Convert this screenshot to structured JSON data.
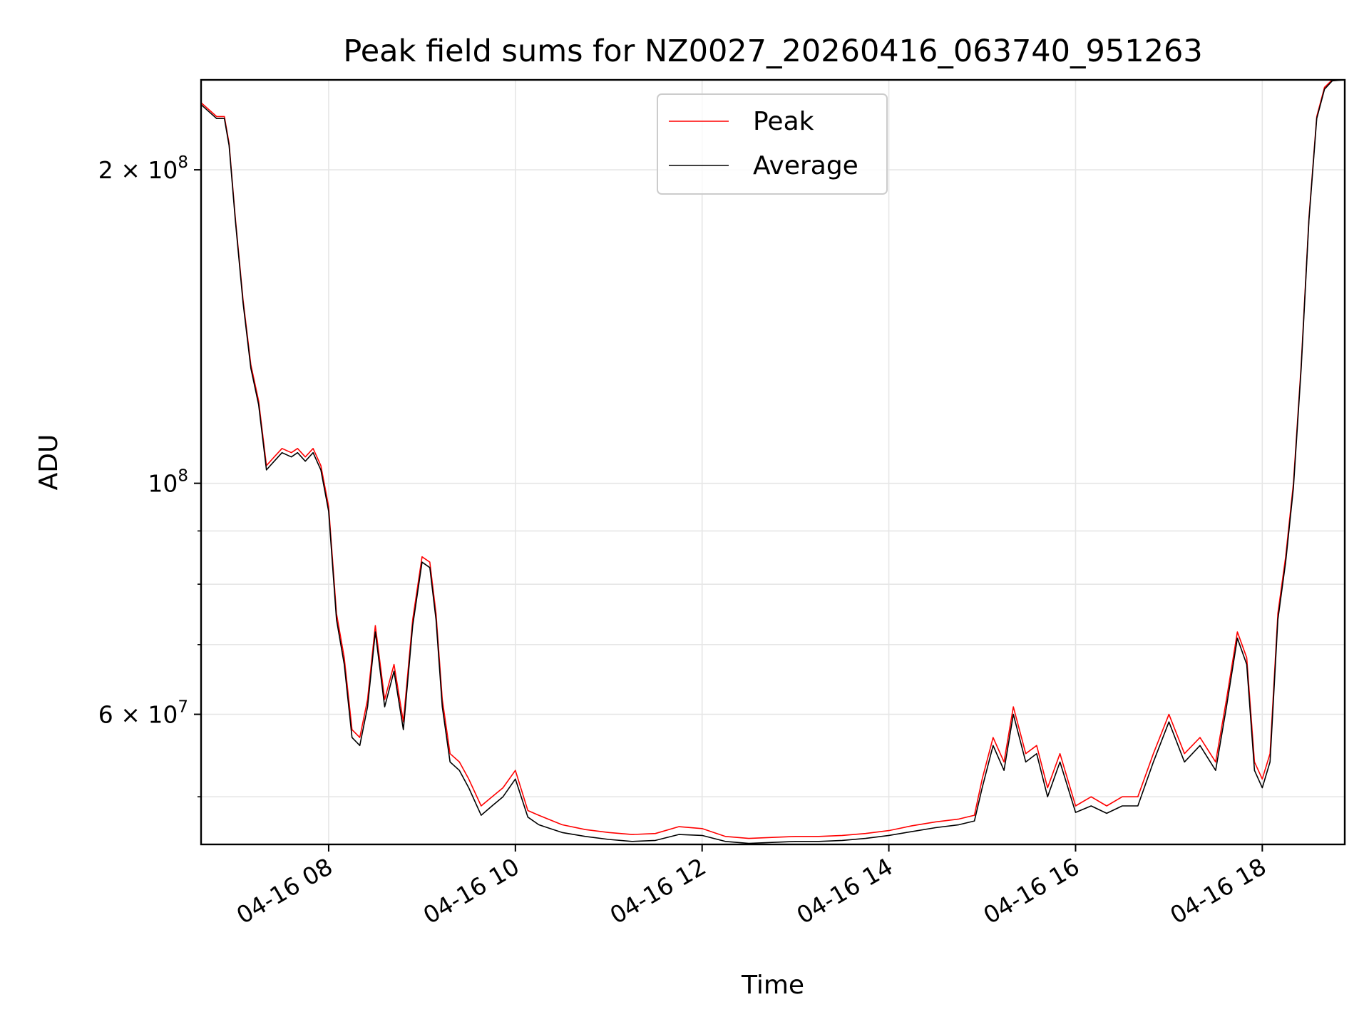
{
  "chart_data": {
    "type": "line",
    "title": "Peak field sums for NZ0027_20260416_063740_951263",
    "xlabel": "Time",
    "ylabel": "ADU",
    "y_scale": "log",
    "ylim": [
      45000000,
      244000000
    ],
    "xlim": [
      "2026-04-16 06:38",
      "2026-04-16 18:53"
    ],
    "grid": true,
    "legend_placement": "upper center",
    "x_ticks": [
      {
        "value": "2026-04-16 08:00",
        "label": "04-16 08"
      },
      {
        "value": "2026-04-16 10:00",
        "label": "04-16 10"
      },
      {
        "value": "2026-04-16 12:00",
        "label": "04-16 12"
      },
      {
        "value": "2026-04-16 14:00",
        "label": "04-16 14"
      },
      {
        "value": "2026-04-16 16:00",
        "label": "04-16 16"
      },
      {
        "value": "2026-04-16 18:00",
        "label": "04-16 18"
      }
    ],
    "y_major_ticks": [
      {
        "value": 60000000,
        "base": "6",
        "exp": "7"
      },
      {
        "value": 100000000,
        "base": "",
        "exp": "8"
      },
      {
        "value": 200000000,
        "base": "2",
        "exp": "8"
      }
    ],
    "y_minor_ticks": [
      50000000,
      70000000,
      80000000,
      90000000
    ],
    "series": [
      {
        "name": "Peak",
        "color": "#ff0000",
        "x": [
          "2026-04-16 06:38",
          "2026-04-16 06:48",
          "2026-04-16 06:53",
          "2026-04-16 06:56",
          "2026-04-16 07:00",
          "2026-04-16 07:05",
          "2026-04-16 07:10",
          "2026-04-16 07:15",
          "2026-04-16 07:20",
          "2026-04-16 07:25",
          "2026-04-16 07:30",
          "2026-04-16 07:36",
          "2026-04-16 07:40",
          "2026-04-16 07:45",
          "2026-04-16 07:50",
          "2026-04-16 07:55",
          "2026-04-16 08:00",
          "2026-04-16 08:05",
          "2026-04-16 08:10",
          "2026-04-16 08:15",
          "2026-04-16 08:20",
          "2026-04-16 08:25",
          "2026-04-16 08:30",
          "2026-04-16 08:36",
          "2026-04-16 08:42",
          "2026-04-16 08:48",
          "2026-04-16 08:54",
          "2026-04-16 09:00",
          "2026-04-16 09:05",
          "2026-04-16 09:09",
          "2026-04-16 09:13",
          "2026-04-16 09:18",
          "2026-04-16 09:24",
          "2026-04-16 09:30",
          "2026-04-16 09:38",
          "2026-04-16 09:45",
          "2026-04-16 09:52",
          "2026-04-16 10:00",
          "2026-04-16 10:08",
          "2026-04-16 10:15",
          "2026-04-16 10:30",
          "2026-04-16 10:45",
          "2026-04-16 11:00",
          "2026-04-16 11:15",
          "2026-04-16 11:30",
          "2026-04-16 11:45",
          "2026-04-16 12:00",
          "2026-04-16 12:15",
          "2026-04-16 12:30",
          "2026-04-16 12:45",
          "2026-04-16 13:00",
          "2026-04-16 13:15",
          "2026-04-16 13:30",
          "2026-04-16 13:45",
          "2026-04-16 14:00",
          "2026-04-16 14:15",
          "2026-04-16 14:30",
          "2026-04-16 14:45",
          "2026-04-16 14:55",
          "2026-04-16 15:00",
          "2026-04-16 15:07",
          "2026-04-16 15:14",
          "2026-04-16 15:20",
          "2026-04-16 15:28",
          "2026-04-16 15:35",
          "2026-04-16 15:42",
          "2026-04-16 15:50",
          "2026-04-16 16:00",
          "2026-04-16 16:10",
          "2026-04-16 16:20",
          "2026-04-16 16:30",
          "2026-04-16 16:40",
          "2026-04-16 16:50",
          "2026-04-16 17:00",
          "2026-04-16 17:10",
          "2026-04-16 17:20",
          "2026-04-16 17:30",
          "2026-04-16 17:37",
          "2026-04-16 17:44",
          "2026-04-16 17:50",
          "2026-04-16 17:55",
          "2026-04-16 18:00",
          "2026-04-16 18:05",
          "2026-04-16 18:10",
          "2026-04-16 18:15",
          "2026-04-16 18:20",
          "2026-04-16 18:25",
          "2026-04-16 18:30",
          "2026-04-16 18:35",
          "2026-04-16 18:40",
          "2026-04-16 18:45",
          "2026-04-16 18:53"
        ],
        "values": [
          232000000,
          225000000,
          225000000,
          212000000,
          180000000,
          150000000,
          130000000,
          120000000,
          104000000,
          106000000,
          108000000,
          107000000,
          108000000,
          106000000,
          108000000,
          104000000,
          95000000,
          75000000,
          68000000,
          58000000,
          57000000,
          62000000,
          73000000,
          62000000,
          67000000,
          59000000,
          74000000,
          85000000,
          84000000,
          75000000,
          62000000,
          55000000,
          54000000,
          52000000,
          49000000,
          50000000,
          51000000,
          53000000,
          48500000,
          48000000,
          47000000,
          46500000,
          46200000,
          46000000,
          46100000,
          46800000,
          46600000,
          45800000,
          45600000,
          45700000,
          45800000,
          45800000,
          45900000,
          46100000,
          46400000,
          46900000,
          47300000,
          47600000,
          48000000,
          52000000,
          57000000,
          54000000,
          61000000,
          55000000,
          56000000,
          51000000,
          55000000,
          49000000,
          50000000,
          49000000,
          50000000,
          50000000,
          55000000,
          60000000,
          55000000,
          57000000,
          54000000,
          62000000,
          72000000,
          68000000,
          54000000,
          52000000,
          55000000,
          75000000,
          85000000,
          100000000,
          130000000,
          180000000,
          225000000,
          240000000,
          244000000,
          244000000
        ]
      },
      {
        "name": "Average",
        "color": "#000000",
        "x": [
          "2026-04-16 06:38",
          "2026-04-16 06:48",
          "2026-04-16 06:53",
          "2026-04-16 06:56",
          "2026-04-16 07:00",
          "2026-04-16 07:05",
          "2026-04-16 07:10",
          "2026-04-16 07:15",
          "2026-04-16 07:20",
          "2026-04-16 07:25",
          "2026-04-16 07:30",
          "2026-04-16 07:36",
          "2026-04-16 07:40",
          "2026-04-16 07:45",
          "2026-04-16 07:50",
          "2026-04-16 07:55",
          "2026-04-16 08:00",
          "2026-04-16 08:05",
          "2026-04-16 08:10",
          "2026-04-16 08:15",
          "2026-04-16 08:20",
          "2026-04-16 08:25",
          "2026-04-16 08:30",
          "2026-04-16 08:36",
          "2026-04-16 08:42",
          "2026-04-16 08:48",
          "2026-04-16 08:54",
          "2026-04-16 09:00",
          "2026-04-16 09:05",
          "2026-04-16 09:09",
          "2026-04-16 09:13",
          "2026-04-16 09:18",
          "2026-04-16 09:24",
          "2026-04-16 09:30",
          "2026-04-16 09:38",
          "2026-04-16 09:45",
          "2026-04-16 09:52",
          "2026-04-16 10:00",
          "2026-04-16 10:08",
          "2026-04-16 10:15",
          "2026-04-16 10:30",
          "2026-04-16 10:45",
          "2026-04-16 11:00",
          "2026-04-16 11:15",
          "2026-04-16 11:30",
          "2026-04-16 11:45",
          "2026-04-16 12:00",
          "2026-04-16 12:15",
          "2026-04-16 12:30",
          "2026-04-16 12:45",
          "2026-04-16 13:00",
          "2026-04-16 13:15",
          "2026-04-16 13:30",
          "2026-04-16 13:45",
          "2026-04-16 14:00",
          "2026-04-16 14:15",
          "2026-04-16 14:30",
          "2026-04-16 14:45",
          "2026-04-16 14:55",
          "2026-04-16 15:00",
          "2026-04-16 15:07",
          "2026-04-16 15:14",
          "2026-04-16 15:20",
          "2026-04-16 15:28",
          "2026-04-16 15:35",
          "2026-04-16 15:42",
          "2026-04-16 15:50",
          "2026-04-16 16:00",
          "2026-04-16 16:10",
          "2026-04-16 16:20",
          "2026-04-16 16:30",
          "2026-04-16 16:40",
          "2026-04-16 16:50",
          "2026-04-16 17:00",
          "2026-04-16 17:10",
          "2026-04-16 17:20",
          "2026-04-16 17:30",
          "2026-04-16 17:37",
          "2026-04-16 17:44",
          "2026-04-16 17:50",
          "2026-04-16 17:55",
          "2026-04-16 18:00",
          "2026-04-16 18:05",
          "2026-04-16 18:10",
          "2026-04-16 18:15",
          "2026-04-16 18:20",
          "2026-04-16 18:25",
          "2026-04-16 18:30",
          "2026-04-16 18:35",
          "2026-04-16 18:40",
          "2026-04-16 18:45",
          "2026-04-16 18:53"
        ],
        "values": [
          231000000,
          224000000,
          224000000,
          211000000,
          179000000,
          149000000,
          129000000,
          119000000,
          103000000,
          105000000,
          107000000,
          106000000,
          107000000,
          105000000,
          107000000,
          103000000,
          94000000,
          74000000,
          67000000,
          57000000,
          56000000,
          61000000,
          72000000,
          61000000,
          66000000,
          58000000,
          73000000,
          84000000,
          83000000,
          74000000,
          61000000,
          54000000,
          53000000,
          51000000,
          48000000,
          49000000,
          50000000,
          52000000,
          47800000,
          47000000,
          46200000,
          45800000,
          45500000,
          45300000,
          45400000,
          46000000,
          45900000,
          45300000,
          45100000,
          45200000,
          45300000,
          45300000,
          45400000,
          45600000,
          45900000,
          46300000,
          46700000,
          47000000,
          47400000,
          51000000,
          56000000,
          53000000,
          60000000,
          54000000,
          55000000,
          50000000,
          54000000,
          48300000,
          49000000,
          48200000,
          49000000,
          49000000,
          54000000,
          59000000,
          54000000,
          56000000,
          53000000,
          61000000,
          71000000,
          67000000,
          53000000,
          51000000,
          54000000,
          74000000,
          84000000,
          99000000,
          129000000,
          179000000,
          224000000,
          239000000,
          243500000,
          244000000
        ]
      }
    ]
  }
}
